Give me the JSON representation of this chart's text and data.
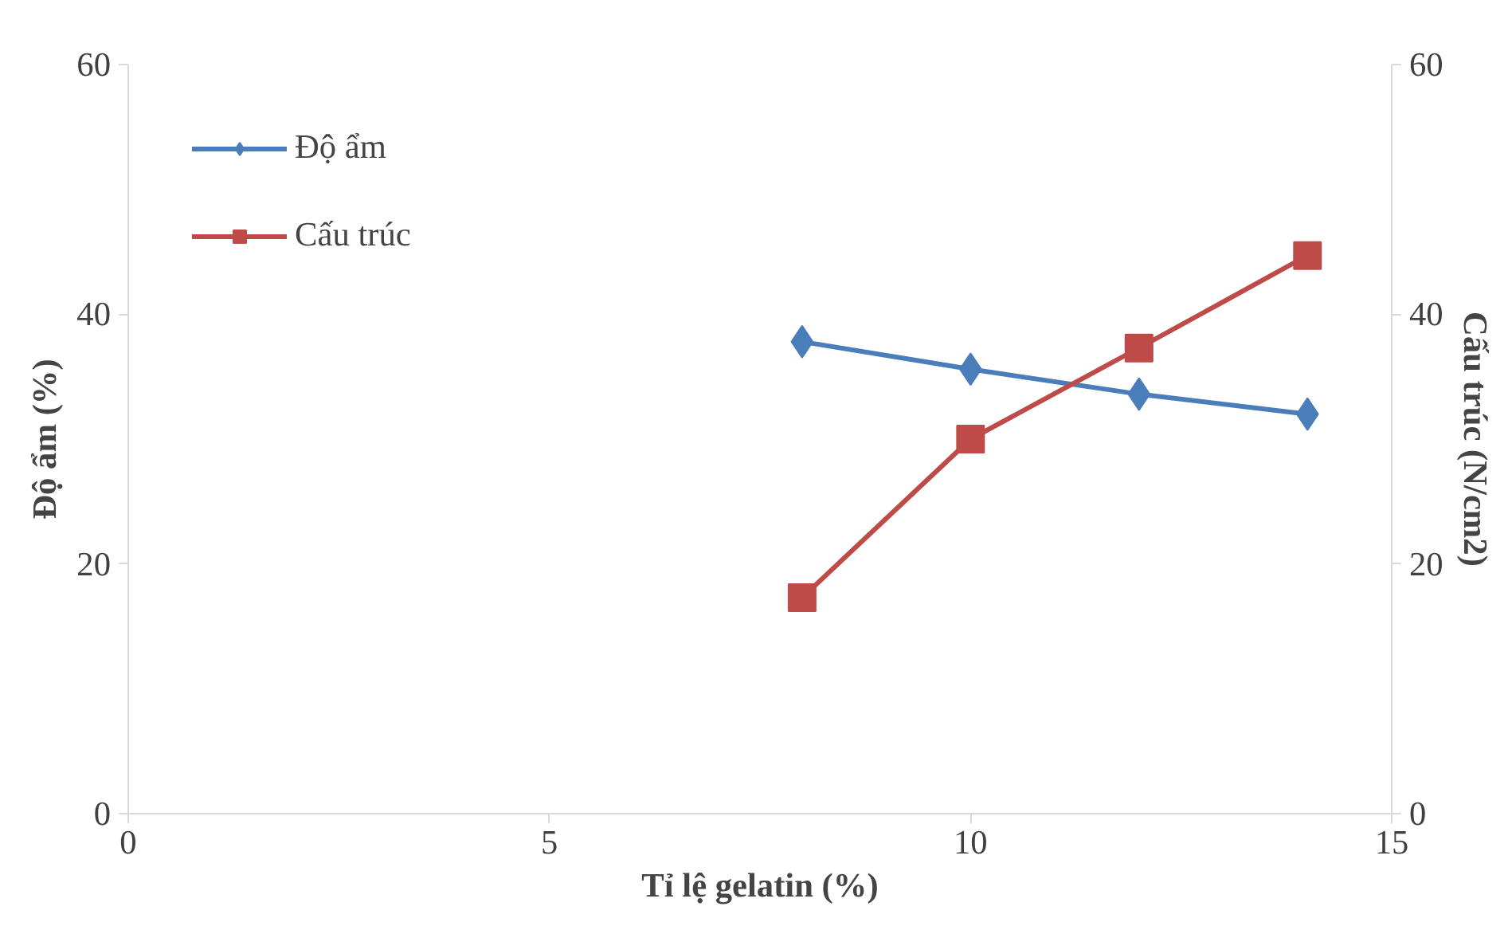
{
  "chart_data": {
    "type": "line",
    "xlabel": "Tỉ lệ gelatin (%)",
    "ylabel": "Độ ẩm (%)",
    "y2label": "Cấu trúc (N/cm2)",
    "x": [
      8,
      10,
      12,
      14
    ],
    "series": [
      {
        "name": "Độ ẩm",
        "color": "#4a7ebb",
        "values": [
          37.8,
          35.6,
          33.6,
          32.0
        ],
        "marker": "diamond"
      },
      {
        "name": "Cấu trúc",
        "color": "#be4b48",
        "values": [
          17.3,
          30.0,
          37.3,
          44.7
        ],
        "marker": "square",
        "axis": "y2"
      }
    ],
    "xlim": [
      0,
      15
    ],
    "xticks": [
      0,
      5,
      10,
      15
    ],
    "ylim": [
      0,
      60
    ],
    "yticks": [
      0,
      20,
      40,
      60
    ],
    "y2lim": [
      0,
      60
    ],
    "y2ticks": [
      0,
      20,
      40,
      60
    ],
    "grid": false,
    "legend": "top left",
    "line_style": "solid"
  }
}
